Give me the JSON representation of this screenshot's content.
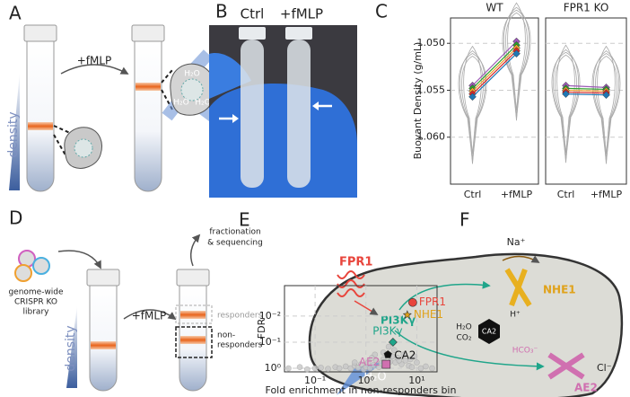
{
  "panels": {
    "A": {
      "label": "A",
      "reagent": "+fMLP",
      "gradient": "density",
      "water": "H₂O"
    },
    "B": {
      "label": "B",
      "columns": [
        "Ctrl",
        "+fMLP"
      ]
    },
    "C": {
      "label": "C"
    },
    "D": {
      "label": "D",
      "library": [
        "genome-wide",
        "CRISPR KO",
        "library"
      ],
      "gradient": "density",
      "reagent": "+fMLP",
      "output": [
        "fractionation",
        "& sequencing"
      ],
      "responders": "responders",
      "non_responders": [
        "non-",
        "responders"
      ]
    },
    "E": {
      "label": "E"
    },
    "F": {
      "label": "F",
      "receptor": "FPR1",
      "kinase": "PI3Kγ",
      "exchanger": "NHE1",
      "sodium": "Na⁺",
      "proton": "H⁺",
      "enzyme": "CA2",
      "substrates": [
        "H₂O",
        "CO₂"
      ],
      "bicarbonate": "HCO₃⁻",
      "chloride": "Cl⁻",
      "anion_exchanger": "AE2",
      "water": "H₂O"
    }
  },
  "chart_data": [
    {
      "type": "violin",
      "title": "WT",
      "ylabel": "Buoyant Density (g/mL)",
      "categories": [
        "Ctrl",
        "+fMLP"
      ],
      "ylim": [
        1.065,
        1.0473
      ],
      "yticks": [
        {
          "value": 1.05,
          "label": "1.050"
        },
        {
          "value": 1.055,
          "label": "1.055"
        },
        {
          "value": 1.06,
          "label": "1.060"
        }
      ],
      "grid": true,
      "tick_labels": true,
      "series": [
        {
          "color": "#9b59b6",
          "values": [
            1.0545,
            1.0498
          ]
        },
        {
          "color": "#2ca02c",
          "values": [
            1.0548,
            1.0502
          ]
        },
        {
          "color": "#f0a030",
          "values": [
            1.0551,
            1.0505
          ]
        },
        {
          "color": "#d62728",
          "values": [
            1.0554,
            1.0508
          ]
        },
        {
          "color": "#1f77b4",
          "values": [
            1.0557,
            1.0511
          ]
        }
      ]
    },
    {
      "type": "violin",
      "title": "FPR1 KO",
      "categories": [
        "Ctrl",
        "+fMLP"
      ],
      "ylim": [
        1.065,
        1.0473
      ],
      "yticks": [
        1.05,
        1.055,
        1.06
      ],
      "grid": true,
      "tick_labels": false,
      "series": [
        {
          "color": "#9b59b6",
          "values": [
            1.0545,
            1.0547
          ]
        },
        {
          "color": "#2ca02c",
          "values": [
            1.0548,
            1.0549
          ]
        },
        {
          "color": "#f0a030",
          "values": [
            1.055,
            1.0551
          ]
        },
        {
          "color": "#d62728",
          "values": [
            1.0552,
            1.0553
          ]
        },
        {
          "color": "#1f77b4",
          "values": [
            1.0554,
            1.0555
          ]
        }
      ]
    },
    {
      "type": "scatter",
      "xlabel": "Fold enrichment in non-responders bin",
      "ylabel": "FDR",
      "xscale": "log",
      "yscale": "log",
      "xlim": [
        0.025,
        25
      ],
      "ylim": [
        1.37,
        0.00068
      ],
      "xticks": [
        {
          "value": 0.1,
          "label": "10⁻¹"
        },
        {
          "value": 1,
          "label": "10⁰"
        },
        {
          "value": 10,
          "label": "10¹"
        }
      ],
      "yticks": [
        {
          "value": 1,
          "label": "10⁰"
        },
        {
          "value": 0.1,
          "label": "10⁻¹"
        },
        {
          "value": 0.01,
          "label": "10⁻²"
        }
      ],
      "grid": true,
      "series": [
        {
          "color": "#c8c8c8",
          "marker": "circle",
          "x": [
            0.03,
            0.05,
            0.07,
            0.1,
            0.13,
            0.18,
            0.25,
            0.3,
            0.4,
            0.5,
            0.6,
            0.7,
            0.8,
            0.9,
            1,
            1.1,
            1.2,
            1.4,
            1.6,
            1.8,
            2,
            2.2,
            2.5,
            3,
            3.3,
            3.8,
            4.2,
            5,
            6,
            7,
            8,
            10,
            12,
            15,
            20,
            1.5,
            2.2,
            3.6,
            5.5,
            7.5,
            1.3,
            2.8,
            4.5,
            0.6,
            9
          ],
          "values": [
            1,
            0.9,
            1.1,
            1,
            0.95,
            1.05,
            0.9,
            1,
            0.85,
            1,
            0.8,
            0.95,
            0.7,
            1.1,
            0.9,
            0.6,
            1,
            0.75,
            0.5,
            0.9,
            0.65,
            0.45,
            0.8,
            0.55,
            0.35,
            0.6,
            0.4,
            0.7,
            0.5,
            0.8,
            0.9,
            0.6,
            1,
            0.85,
            1,
            0.3,
            0.25,
            0.2,
            0.3,
            0.45,
            0.4,
            0.15,
            0.5,
            0.6,
            0.35
          ]
        },
        {
          "name": "FPR1",
          "color": "#e8453c",
          "marker": "circle",
          "x": [
            8.3
          ],
          "values": [
            0.003
          ]
        },
        {
          "name": "NHE1",
          "color": "#e0a21a",
          "marker": "star",
          "x": [
            6.5
          ],
          "values": [
            0.009
          ]
        },
        {
          "name": "PI3Kγ",
          "color": "#1fa58a",
          "marker": "diamond",
          "x": [
            3.4
          ],
          "values": [
            0.1
          ]
        },
        {
          "name": "CA2",
          "color": "#111111",
          "marker": "pentagon",
          "x": [
            2.7
          ],
          "values": [
            0.3
          ]
        },
        {
          "name": "AE2",
          "color": "#d070b0",
          "marker": "square",
          "x": [
            2.5
          ],
          "values": [
            0.7
          ]
        }
      ]
    }
  ]
}
